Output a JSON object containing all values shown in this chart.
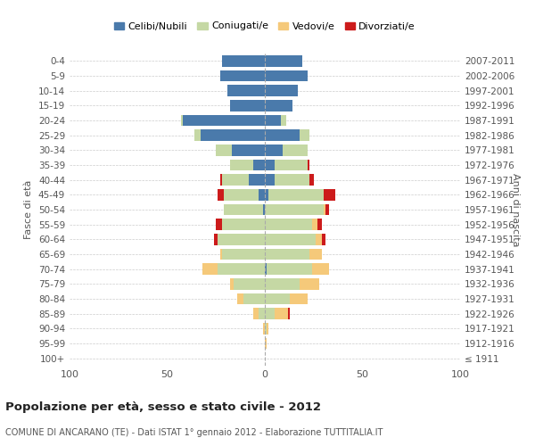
{
  "age_groups": [
    "100+",
    "95-99",
    "90-94",
    "85-89",
    "80-84",
    "75-79",
    "70-74",
    "65-69",
    "60-64",
    "55-59",
    "50-54",
    "45-49",
    "40-44",
    "35-39",
    "30-34",
    "25-29",
    "20-24",
    "15-19",
    "10-14",
    "5-9",
    "0-4"
  ],
  "birth_years": [
    "≤ 1911",
    "1912-1916",
    "1917-1921",
    "1922-1926",
    "1927-1931",
    "1932-1936",
    "1937-1941",
    "1942-1946",
    "1947-1951",
    "1952-1956",
    "1957-1961",
    "1962-1966",
    "1967-1971",
    "1972-1976",
    "1977-1981",
    "1982-1986",
    "1987-1991",
    "1992-1996",
    "1997-2001",
    "2002-2006",
    "2007-2011"
  ],
  "males": {
    "celibi": [
      0,
      0,
      0,
      0,
      0,
      0,
      0,
      0,
      0,
      0,
      1,
      3,
      8,
      6,
      17,
      33,
      42,
      18,
      19,
      23,
      22
    ],
    "coniugati": [
      0,
      0,
      0,
      3,
      11,
      16,
      24,
      22,
      24,
      22,
      20,
      18,
      14,
      12,
      8,
      3,
      1,
      0,
      0,
      0,
      0
    ],
    "vedovi": [
      0,
      0,
      1,
      3,
      3,
      2,
      8,
      1,
      0,
      0,
      0,
      0,
      0,
      0,
      0,
      0,
      0,
      0,
      0,
      0,
      0
    ],
    "divorziati": [
      0,
      0,
      0,
      0,
      0,
      0,
      0,
      0,
      2,
      3,
      0,
      3,
      1,
      0,
      0,
      0,
      0,
      0,
      0,
      0,
      0
    ]
  },
  "females": {
    "nubili": [
      0,
      0,
      0,
      0,
      0,
      0,
      1,
      0,
      0,
      0,
      0,
      2,
      5,
      5,
      9,
      18,
      8,
      14,
      17,
      22,
      19
    ],
    "coniugate": [
      0,
      0,
      1,
      5,
      13,
      18,
      23,
      23,
      26,
      24,
      30,
      28,
      18,
      17,
      13,
      5,
      3,
      0,
      0,
      0,
      0
    ],
    "vedove": [
      0,
      1,
      1,
      7,
      9,
      10,
      9,
      6,
      3,
      3,
      1,
      0,
      0,
      0,
      0,
      0,
      0,
      0,
      0,
      0,
      0
    ],
    "divorziate": [
      0,
      0,
      0,
      1,
      0,
      0,
      0,
      0,
      2,
      2,
      2,
      6,
      2,
      1,
      0,
      0,
      0,
      0,
      0,
      0,
      0
    ]
  },
  "colors": {
    "celibi_nubili": "#4a7aab",
    "coniugati": "#c5d8a4",
    "vedovi": "#f5c97a",
    "divorziati": "#cc1b1b"
  },
  "xlim": 100,
  "title": "Popolazione per età, sesso e stato civile - 2012",
  "subtitle": "COMUNE DI ANCARANO (TE) - Dati ISTAT 1° gennaio 2012 - Elaborazione TUTTITALIA.IT",
  "ylabel_left": "Fasce di età",
  "ylabel_right": "Anni di nascita",
  "bg_color": "#ffffff",
  "grid_color": "#cccccc"
}
